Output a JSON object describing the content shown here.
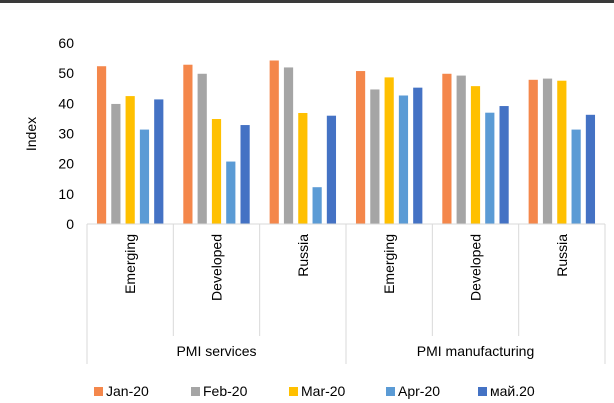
{
  "chart_data": {
    "type": "bar",
    "ylabel": "Index",
    "ylim": [
      0,
      60
    ],
    "yticks": [
      0,
      10,
      20,
      30,
      40,
      50,
      60
    ],
    "grid": false,
    "legend_position": "bottom",
    "groups": [
      {
        "label": "PMI services",
        "categories": [
          "Emerging",
          "Developed",
          "Russia"
        ]
      },
      {
        "label": "PMI manufacturing",
        "categories": [
          "Emerging",
          "Developed",
          "Russia"
        ]
      }
    ],
    "series": [
      {
        "name": "Jan-20",
        "color": "#F4874B",
        "values": [
          52.3,
          52.8,
          54.2,
          50.7,
          49.8,
          47.8
        ]
      },
      {
        "name": "Feb-20",
        "color": "#A5A5A5",
        "values": [
          39.8,
          49.8,
          51.9,
          44.6,
          49.2,
          48.2
        ]
      },
      {
        "name": "Mar-20",
        "color": "#FFC000",
        "values": [
          42.4,
          34.8,
          36.8,
          48.6,
          45.7,
          47.5
        ]
      },
      {
        "name": "Apr-20",
        "color": "#5B9BD5",
        "values": [
          31.3,
          20.7,
          12.2,
          42.6,
          36.9,
          31.3
        ]
      },
      {
        "name": "май.20",
        "color": "#4472C4",
        "values": [
          41.3,
          32.8,
          35.9,
          45.2,
          39.1,
          36.2
        ]
      }
    ]
  }
}
